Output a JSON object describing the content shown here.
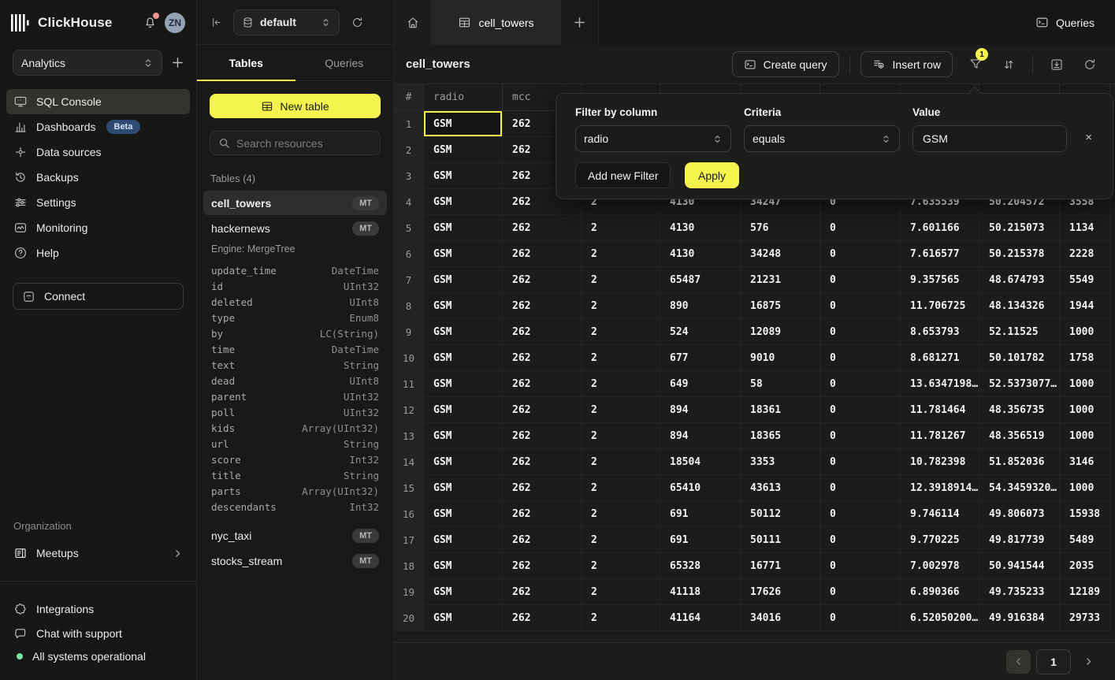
{
  "brand": {
    "name": "ClickHouse",
    "avatar": "ZN"
  },
  "workspace": {
    "selected": "Analytics"
  },
  "sidebar": {
    "items": [
      {
        "label": "SQL Console"
      },
      {
        "label": "Dashboards",
        "badge": "Beta"
      },
      {
        "label": "Data sources"
      },
      {
        "label": "Backups"
      },
      {
        "label": "Settings"
      },
      {
        "label": "Monitoring"
      },
      {
        "label": "Help"
      }
    ],
    "connect": "Connect",
    "organization": {
      "label": "Organization",
      "items": [
        {
          "label": "Meetups"
        }
      ]
    },
    "footer": {
      "items": [
        {
          "label": "Integrations"
        },
        {
          "label": "Chat with support"
        }
      ],
      "status": "All systems operational"
    }
  },
  "explorer": {
    "database": "default",
    "tabs": [
      {
        "label": "Tables"
      },
      {
        "label": "Queries"
      }
    ],
    "new_table": "New table",
    "search_placeholder": "Search resources",
    "section": "Tables (4)",
    "tables": [
      {
        "name": "cell_towers",
        "badge": "MT"
      },
      {
        "name": "hackernews",
        "badge": "MT"
      },
      {
        "name": "nyc_taxi",
        "badge": "MT"
      },
      {
        "name": "stocks_stream",
        "badge": "MT"
      }
    ],
    "engine": "Engine: MergeTree",
    "schema": [
      {
        "name": "update_time",
        "type": "DateTime"
      },
      {
        "name": "id",
        "type": "UInt32"
      },
      {
        "name": "deleted",
        "type": "UInt8"
      },
      {
        "name": "type",
        "type": "Enum8"
      },
      {
        "name": "by",
        "type": "LC(String)"
      },
      {
        "name": "time",
        "type": "DateTime"
      },
      {
        "name": "text",
        "type": "String"
      },
      {
        "name": "dead",
        "type": "UInt8"
      },
      {
        "name": "parent",
        "type": "UInt32"
      },
      {
        "name": "poll",
        "type": "UInt32"
      },
      {
        "name": "kids",
        "type": "Array(UInt32)"
      },
      {
        "name": "url",
        "type": "String"
      },
      {
        "name": "score",
        "type": "Int32"
      },
      {
        "name": "title",
        "type": "String"
      },
      {
        "name": "parts",
        "type": "Array(UInt32)"
      },
      {
        "name": "descendants",
        "type": "Int32"
      }
    ]
  },
  "main": {
    "tab": {
      "label": "cell_towers"
    },
    "queries": "Queries",
    "title": "cell_towers",
    "toolbar": {
      "create_query": "Create query",
      "insert_row": "Insert row",
      "filter_count": "1"
    },
    "filter": {
      "column_label": "Filter by column",
      "column": "radio",
      "criteria_label": "Criteria",
      "criteria": "equals",
      "value_label": "Value",
      "value": "GSM",
      "add": "Add new Filter",
      "apply": "Apply",
      "close": "×"
    },
    "table": {
      "headers": [
        "#",
        "radio",
        "mcc",
        "",
        "",
        "",
        "",
        "",
        "",
        ""
      ],
      "rows": [
        {
          "n": "1",
          "cells": [
            "GSM",
            "262",
            "",
            "",
            "",
            "",
            "",
            "",
            ""
          ]
        },
        {
          "n": "2",
          "cells": [
            "GSM",
            "262",
            "",
            "",
            "",
            "",
            "",
            "",
            ""
          ]
        },
        {
          "n": "3",
          "cells": [
            "GSM",
            "262",
            "",
            "",
            "",
            "",
            "",
            "",
            ""
          ]
        },
        {
          "n": "4",
          "cells": [
            "GSM",
            "262",
            "2",
            "4130",
            "34247",
            "0",
            "7.635539",
            "50.204572",
            "3558"
          ]
        },
        {
          "n": "5",
          "cells": [
            "GSM",
            "262",
            "2",
            "4130",
            "576",
            "0",
            "7.601166",
            "50.215073",
            "1134"
          ]
        },
        {
          "n": "6",
          "cells": [
            "GSM",
            "262",
            "2",
            "4130",
            "34248",
            "0",
            "7.616577",
            "50.215378",
            "2228"
          ]
        },
        {
          "n": "7",
          "cells": [
            "GSM",
            "262",
            "2",
            "65487",
            "21231",
            "0",
            "9.357565",
            "48.674793",
            "5549"
          ]
        },
        {
          "n": "8",
          "cells": [
            "GSM",
            "262",
            "2",
            "890",
            "16875",
            "0",
            "11.706725",
            "48.134326",
            "1944"
          ]
        },
        {
          "n": "9",
          "cells": [
            "GSM",
            "262",
            "2",
            "524",
            "12089",
            "0",
            "8.653793",
            "52.11525",
            "1000"
          ]
        },
        {
          "n": "10",
          "cells": [
            "GSM",
            "262",
            "2",
            "677",
            "9010",
            "0",
            "8.681271",
            "50.101782",
            "1758"
          ]
        },
        {
          "n": "11",
          "cells": [
            "GSM",
            "262",
            "2",
            "649",
            "58",
            "0",
            "13.6347198…",
            "52.5373077…",
            "1000"
          ]
        },
        {
          "n": "12",
          "cells": [
            "GSM",
            "262",
            "2",
            "894",
            "18361",
            "0",
            "11.781464",
            "48.356735",
            "1000"
          ]
        },
        {
          "n": "13",
          "cells": [
            "GSM",
            "262",
            "2",
            "894",
            "18365",
            "0",
            "11.781267",
            "48.356519",
            "1000"
          ]
        },
        {
          "n": "14",
          "cells": [
            "GSM",
            "262",
            "2",
            "18504",
            "3353",
            "0",
            "10.782398",
            "51.852036",
            "3146"
          ]
        },
        {
          "n": "15",
          "cells": [
            "GSM",
            "262",
            "2",
            "65410",
            "43613",
            "0",
            "12.3918914…",
            "54.3459320…",
            "1000"
          ]
        },
        {
          "n": "16",
          "cells": [
            "GSM",
            "262",
            "2",
            "691",
            "50112",
            "0",
            "9.746114",
            "49.806073",
            "15938"
          ]
        },
        {
          "n": "17",
          "cells": [
            "GSM",
            "262",
            "2",
            "691",
            "50111",
            "0",
            "9.770225",
            "49.817739",
            "5489"
          ]
        },
        {
          "n": "18",
          "cells": [
            "GSM",
            "262",
            "2",
            "65328",
            "16771",
            "0",
            "7.002978",
            "50.941544",
            "2035"
          ]
        },
        {
          "n": "19",
          "cells": [
            "GSM",
            "262",
            "2",
            "41118",
            "17626",
            "0",
            "6.890366",
            "49.735233",
            "12189"
          ]
        },
        {
          "n": "20",
          "cells": [
            "GSM",
            "262",
            "2",
            "41164",
            "34016",
            "0",
            "6.52050200…",
            "49.916384",
            "29733"
          ]
        }
      ]
    },
    "pagination": {
      "page": "1"
    }
  },
  "colors": {
    "accent": "#f5f44f",
    "beta_badge": "#2e4a70",
    "status_green": "#7be2a2",
    "notification_red": "#ef8f8f"
  }
}
